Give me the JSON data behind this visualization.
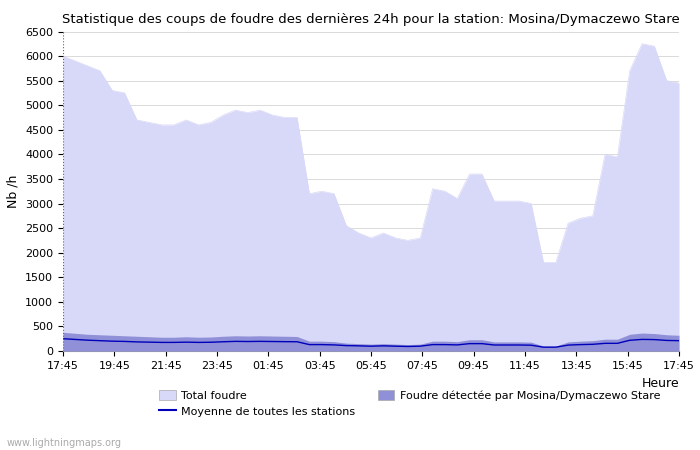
{
  "title": "Statistique des coups de foudre des dernières 24h pour la station: Mosina/Dymaczewo Stare",
  "ylabel": "Nb /h",
  "xlim": [
    0,
    48
  ],
  "ylim": [
    0,
    6500
  ],
  "yticks": [
    0,
    500,
    1000,
    1500,
    2000,
    2500,
    3000,
    3500,
    4000,
    4500,
    5000,
    5500,
    6000,
    6500
  ],
  "xtick_labels": [
    "17:45",
    "19:45",
    "21:45",
    "23:45",
    "01:45",
    "03:45",
    "05:45",
    "07:45",
    "09:45",
    "11:45",
    "13:45",
    "15:45",
    "17:45"
  ],
  "watermark": "www.lightningmaps.org",
  "total_foudre_color": "#d8d8f8",
  "detected_color": "#9090d8",
  "mean_line_color": "#0000bb",
  "background_color": "#ffffff",
  "total_foudre": [
    6000,
    5900,
    5800,
    5700,
    5300,
    5250,
    4700,
    4650,
    4600,
    4600,
    4700,
    4600,
    4650,
    4800,
    4900,
    4850,
    4900,
    4800,
    4750,
    4750,
    3200,
    3250,
    3200,
    2550,
    2400,
    2300,
    2400,
    2300,
    2250,
    2300,
    3300,
    3250,
    3100,
    3600,
    3600,
    3050,
    3050,
    3050,
    3000,
    1800,
    1800,
    2600,
    2700,
    2750,
    4000,
    3950,
    5700,
    6250,
    6200,
    5500,
    5450
  ],
  "detected": [
    380,
    360,
    340,
    330,
    320,
    310,
    300,
    290,
    280,
    280,
    290,
    280,
    285,
    300,
    310,
    305,
    310,
    305,
    300,
    295,
    200,
    200,
    190,
    160,
    150,
    140,
    150,
    140,
    130,
    140,
    200,
    200,
    190,
    230,
    230,
    185,
    185,
    185,
    180,
    100,
    100,
    185,
    200,
    210,
    240,
    240,
    340,
    365,
    355,
    330,
    320
  ],
  "mean_line": [
    250,
    235,
    220,
    210,
    200,
    195,
    185,
    180,
    175,
    175,
    180,
    175,
    178,
    188,
    196,
    193,
    196,
    193,
    190,
    188,
    130,
    130,
    124,
    110,
    105,
    98,
    105,
    98,
    92,
    98,
    130,
    130,
    124,
    150,
    150,
    122,
    122,
    122,
    118,
    78,
    78,
    120,
    130,
    136,
    156,
    156,
    218,
    236,
    232,
    215,
    210
  ]
}
